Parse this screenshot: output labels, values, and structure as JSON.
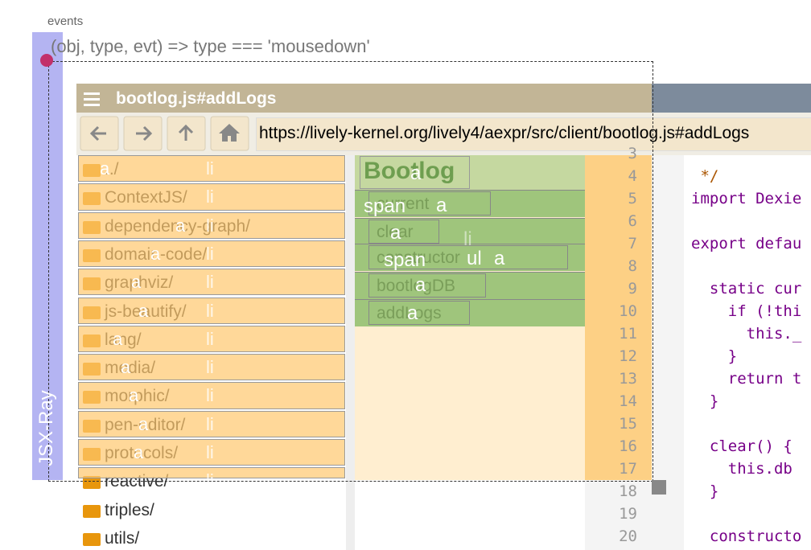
{
  "header": {
    "label": "events",
    "filter": "(obj, type, evt) => type === 'mousedown'"
  },
  "sidebar": {
    "label": "JSX-Ray"
  },
  "window": {
    "title": "bootlog.js#addLogs",
    "url": "https://lively-kernel.org/lively4/aexpr/src/client/bootlog.js#addLogs"
  },
  "folders": [
    {
      "name": "../",
      "tags": [
        "a",
        "li"
      ]
    },
    {
      "name": "ContextJS/",
      "tags": [
        "li"
      ]
    },
    {
      "name": "dependency-graph/",
      "tags": [
        "a",
        "li"
      ]
    },
    {
      "name": "domain-code/",
      "tags": [
        "a",
        "li"
      ]
    },
    {
      "name": "graphviz/",
      "tags": [
        "a",
        "li"
      ]
    },
    {
      "name": "js-beautify/",
      "tags": [
        "a",
        "li"
      ]
    },
    {
      "name": "lang/",
      "tags": [
        "a",
        "li"
      ]
    },
    {
      "name": "media/",
      "tags": [
        "a",
        "li"
      ]
    },
    {
      "name": "morphic/",
      "tags": [
        "a",
        "li"
      ]
    },
    {
      "name": "pen-editor/",
      "tags": [
        "a",
        "li"
      ]
    },
    {
      "name": "protocols/",
      "tags": [
        "a",
        "li"
      ]
    },
    {
      "name": "reactive/",
      "tags": [
        "li"
      ]
    },
    {
      "name": "triples/",
      "tags": []
    },
    {
      "name": "utils/",
      "tags": []
    }
  ],
  "outline": {
    "title": "Bootlog",
    "items": [
      "current",
      "clear",
      "constructor",
      "bootlogDB",
      "addLogs"
    ],
    "tags": [
      "a",
      "span",
      "a",
      "a",
      "li",
      "span",
      "ul",
      "a",
      "a",
      "a"
    ]
  },
  "editor": {
    "line_numbers": [
      3,
      4,
      5,
      6,
      7,
      8,
      9,
      10,
      11,
      12,
      13,
      14,
      15,
      16,
      17,
      18,
      19,
      20
    ],
    "lines": [
      "",
      " */",
      "import Dexie",
      "",
      "export defau",
      "",
      "  static cur",
      "    if (!thi",
      "      this._",
      "    }",
      "    return t",
      "  }",
      "",
      "  clear() {",
      "    this.db",
      "  }",
      "",
      "  constructo"
    ]
  }
}
